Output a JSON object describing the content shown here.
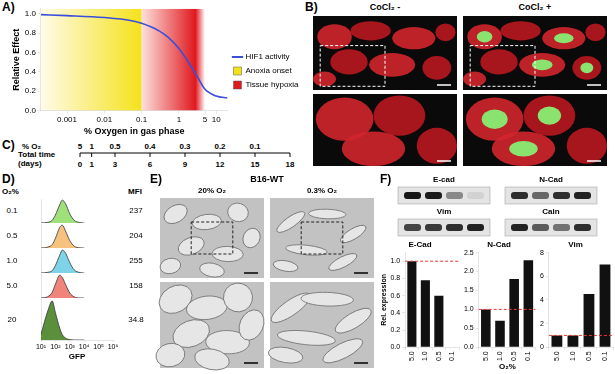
{
  "chart_data": [
    {
      "panel": "A)",
      "type": "line",
      "x_label": "% Oxygen in gas phase",
      "y_label": "Relative Effect",
      "log": "x",
      "grid": false,
      "legend": "right",
      "x": [
        0.0002,
        0.001,
        0.01,
        0.05,
        0.1,
        0.3,
        0.5,
        1,
        2,
        3,
        5,
        10,
        20
      ],
      "series": [
        {
          "name": "HIF1 activity",
          "color": "#3a4fd8",
          "values": [
            0.99,
            0.98,
            0.96,
            0.93,
            0.9,
            0.82,
            0.76,
            0.64,
            0.47,
            0.36,
            0.22,
            0.15,
            0.13
          ]
        }
      ],
      "regions": [
        {
          "name": "Anoxia onset",
          "from": 0.0002,
          "to": 0.1,
          "color": "#f5e21b"
        },
        {
          "name": "Tissue hypoxia",
          "from": 0.1,
          "to": 5,
          "color": "#e0191f"
        }
      ],
      "xlim": [
        0.0002,
        20
      ],
      "xticks": [
        0.001,
        0.01,
        0.1,
        1,
        5,
        10
      ],
      "ylim": [
        0,
        1.05
      ],
      "yticks": [
        {
          "value": 0,
          "label": "0.0"
        },
        {
          "value": 0.2,
          "label": "0.2"
        },
        {
          "value": 0.4,
          "label": "0.4"
        },
        {
          "value": 0.6,
          "label": "0.6"
        },
        {
          "value": 0.8,
          "label": "0.8"
        },
        {
          "value": 1,
          "label": "1.0"
        }
      ]
    },
    {
      "panel": "D)",
      "type": "area",
      "x_label": "GFP",
      "log": "x",
      "tick_labels": "x",
      "header": {
        "group": "O₂%",
        "value": "MFI"
      },
      "x": [
        10,
        30,
        60,
        100,
        200,
        300,
        500,
        1000,
        2000,
        5000,
        10000
      ],
      "series": [
        {
          "name": "0.1",
          "color": "#9fe07a",
          "mfi": 237,
          "values": [
            0,
            0.03,
            0.12,
            0.35,
            0.8,
            1.0,
            0.85,
            0.4,
            0.12,
            0.02,
            0
          ]
        },
        {
          "name": "0.5",
          "color": "#f6c27e",
          "mfi": 204,
          "values": [
            0,
            0.04,
            0.15,
            0.42,
            0.9,
            1.0,
            0.75,
            0.32,
            0.08,
            0.01,
            0
          ]
        },
        {
          "name": "1.0",
          "color": "#7fd3e8",
          "mfi": 255,
          "values": [
            0,
            0.03,
            0.1,
            0.33,
            0.78,
            1.0,
            0.88,
            0.45,
            0.14,
            0.02,
            0
          ]
        },
        {
          "name": "5.0",
          "color": "#f0837a",
          "mfi": 158,
          "values": [
            0,
            0.06,
            0.25,
            0.6,
            1.0,
            0.9,
            0.6,
            0.22,
            0.05,
            0,
            0
          ]
        },
        {
          "name": "20",
          "color": "#5b8f3c",
          "mfi": 34.8,
          "values": [
            0.15,
            0.75,
            1.0,
            0.7,
            0.3,
            0.14,
            0.05,
            0.01,
            0,
            0,
            0
          ]
        }
      ],
      "xlim": [
        10,
        1000000
      ],
      "xticks": [
        {
          "value": 10,
          "label": "10¹"
        },
        {
          "value": 100,
          "label": "10²"
        },
        {
          "value": 1000,
          "label": "10³"
        },
        {
          "value": 10000,
          "label": "10⁴"
        },
        {
          "value": 100000,
          "label": "10⁵"
        },
        {
          "value": 1000000,
          "label": "10⁶"
        }
      ],
      "ylim": [
        0,
        1.05
      ],
      "yticks": []
    },
    {
      "type": "bar",
      "title": "E-Cad",
      "y_label": "Rel. expression",
      "grid": false,
      "categories": [
        "5.0",
        "1.0",
        "0.5",
        "0.1"
      ],
      "values": [
        1.0,
        0.78,
        0.6,
        null
      ],
      "color": "#111111",
      "reference": {
        "value": 1,
        "color": "#e53935",
        "line_style": "dashed"
      },
      "ylim": [
        0,
        1.1
      ],
      "yticks": [
        {
          "value": 0,
          "label": "0.0"
        },
        {
          "value": 0.2,
          "label": "0.2"
        },
        {
          "value": 0.4,
          "label": "0.4"
        },
        {
          "value": 0.6,
          "label": "0.6"
        },
        {
          "value": 0.8,
          "label": "0.8"
        },
        {
          "value": 1,
          "label": "1.0"
        }
      ]
    },
    {
      "type": "bar",
      "title": "N-Cad",
      "grid": false,
      "categories": [
        "5.0",
        "1.0",
        "0.5",
        "0.1"
      ],
      "values": [
        1.0,
        0.7,
        1.8,
        2.3
      ],
      "color": "#111111",
      "reference": {
        "value": 1,
        "color": "#e53935",
        "line_style": "dashed"
      },
      "ylim": [
        0,
        2.5
      ],
      "yticks": [
        {
          "value": 0,
          "label": "0.0"
        },
        {
          "value": 0.5,
          "label": "0.5"
        },
        {
          "value": 1,
          "label": "1.0"
        },
        {
          "value": 1.5,
          "label": "1.5"
        },
        {
          "value": 2,
          "label": "2.0"
        },
        {
          "value": 2.5,
          "label": "2.5"
        }
      ]
    },
    {
      "type": "bar",
      "title": "Vim",
      "grid": false,
      "categories": [
        "5.0",
        "1.0",
        "0.5",
        "0.1"
      ],
      "values": [
        1,
        1,
        4.5,
        7
      ],
      "color": "#111111",
      "reference": {
        "value": 1,
        "color": "#e53935",
        "line_style": "dashed"
      },
      "ylim": [
        0,
        8
      ],
      "yticks": [
        0,
        2,
        4,
        6,
        8
      ]
    }
  ],
  "panels": {
    "B": {
      "panel": "B)",
      "images": [
        "CoCl₂ -",
        "CoCl₂ +"
      ]
    },
    "C": {
      "panel": "C)",
      "o2_label": "% O₂",
      "time_label": "Total time (days)",
      "o2": [
        5,
        1,
        0.5,
        0.4,
        0.3,
        0.2,
        0.1
      ],
      "days": [
        0,
        1,
        3,
        6,
        9,
        12,
        15,
        18
      ]
    },
    "E": {
      "panel": "E)",
      "title": "B16-WT",
      "images": [
        "20% O₂",
        "0.3% O₂"
      ]
    },
    "F": {
      "panel": "F)",
      "blots": [
        "E-cad",
        "N-Cad",
        "Vim",
        "Caln"
      ],
      "x_label": "O₂%"
    }
  }
}
